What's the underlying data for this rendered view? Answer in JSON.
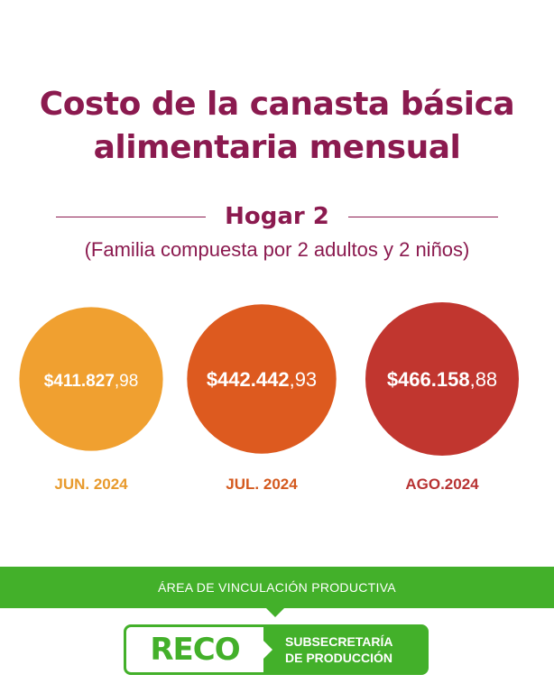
{
  "header": {
    "title_line1": "Costo de la canasta básica",
    "title_line2": "alimentaria mensual",
    "subtitle": "Hogar 2",
    "description": "(Familia compuesta por 2 adultos y 2 niños)"
  },
  "chart_data": {
    "type": "bubble",
    "title": "Costo de la canasta básica alimentaria mensual",
    "subtitle": "Hogar 2",
    "categories": [
      "JUN. 2024",
      "JUL. 2024",
      "AGO.2024"
    ],
    "values": [
      411827.98,
      442442.93,
      466158.88
    ],
    "value_labels": [
      {
        "main": "$411.827",
        "decimals": ",98"
      },
      {
        "main": "$442.442",
        "decimals": ",93"
      },
      {
        "main": "$466.158",
        "decimals": ",88"
      }
    ],
    "colors": [
      "#f0a030",
      "#dd5a1f",
      "#c1362f"
    ],
    "label_colors": [
      "#e89a2c",
      "#d45a1f",
      "#b83333"
    ]
  },
  "footer": {
    "area_label": "ÁREA DE VINCULACIÓN PRODUCTIVA",
    "logo_text": "RECO",
    "org_line1": "SUBSECRETARÍA",
    "org_line2": "DE PRODUCCIÓN",
    "brand_color": "#43b02a"
  }
}
